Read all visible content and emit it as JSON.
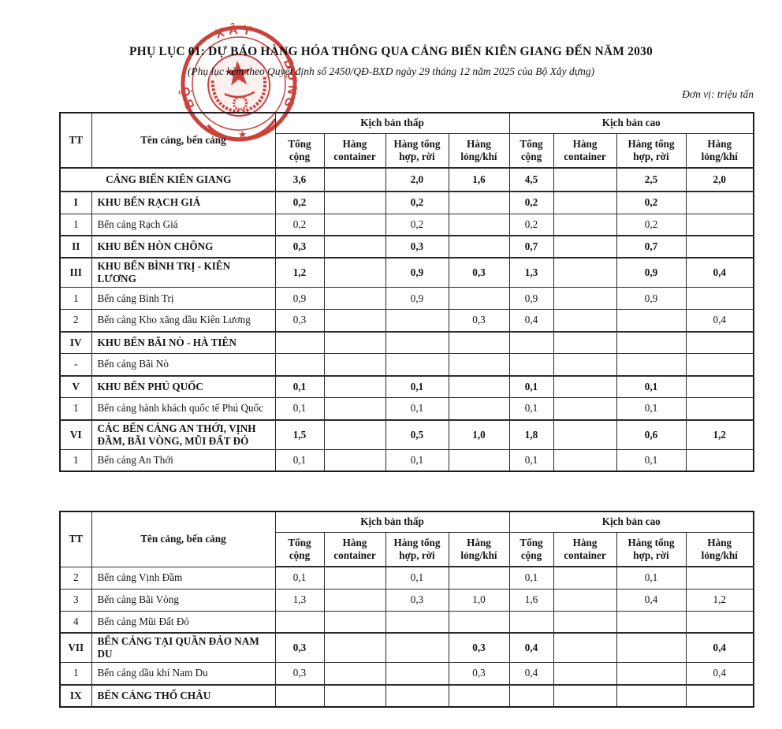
{
  "page": {
    "title": "PHỤ LỤC 01: DỰ BÁO HÀNG HÓA THÔNG QUA CẢNG BIỂN KIÊN GIANG ĐẾN NĂM 2030",
    "subtitle": "(Phụ lục kèm theo Quyết định số 2450/QĐ-BXD ngày 29 tháng 12 năm 2025 của Bộ Xây dựng)",
    "unit_note": "Đơn vị: triệu tấn"
  },
  "stamp": {
    "ring_text_left": "BỘ",
    "ring_text_top": "XÂY",
    "ring_text_right": "DỰNG",
    "color": "#c5322b"
  },
  "header": {
    "tt": "TT",
    "name": "Tên cảng, bến cảng",
    "scenario_low": "Kịch bản thấp",
    "scenario_high": "Kịch bản cao",
    "subcols": [
      "Tổng cộng",
      "Hàng container",
      "Hàng tổng hợp, rời",
      "Hàng lỏng/khí"
    ]
  },
  "table1": {
    "rows": [
      {
        "tt": "",
        "name": "CẢNG BIỂN KIÊN GIANG",
        "style": "total",
        "values": [
          "3,6",
          "",
          "2,0",
          "1,6",
          "4,5",
          "",
          "2,5",
          "2,0"
        ]
      },
      {
        "tt": "I",
        "name": "KHU BẾN RẠCH GIÁ",
        "style": "section",
        "values": [
          "0,2",
          "",
          "0,2",
          "",
          "0,2",
          "",
          "0,2",
          ""
        ]
      },
      {
        "tt": "1",
        "name": "Bến cảng Rạch Giá",
        "style": "item",
        "values": [
          "0,2",
          "",
          "0,2",
          "",
          "0,2",
          "",
          "0,2",
          ""
        ]
      },
      {
        "tt": "II",
        "name": "KHU BẾN HÒN CHÔNG",
        "style": "section",
        "values": [
          "0,3",
          "",
          "0,3",
          "",
          "0,7",
          "",
          "0,7",
          ""
        ]
      },
      {
        "tt": "III",
        "name": "KHU BẾN BÌNH TRỊ - KIÊN LƯƠNG",
        "style": "section",
        "values": [
          "1,2",
          "",
          "0,9",
          "0,3",
          "1,3",
          "",
          "0,9",
          "0,4"
        ]
      },
      {
        "tt": "1",
        "name": "Bến cảng Bình Trị",
        "style": "item",
        "values": [
          "0,9",
          "",
          "0,9",
          "",
          "0,9",
          "",
          "0,9",
          ""
        ]
      },
      {
        "tt": "2",
        "name": "Bến cảng Kho xăng dầu Kiên Lương",
        "style": "item",
        "values": [
          "0,3",
          "",
          "",
          "0,3",
          "0,4",
          "",
          "",
          "0,4"
        ]
      },
      {
        "tt": "IV",
        "name": "KHU BẾN BÃI NÒ - HÀ TIÊN",
        "style": "section",
        "values": [
          "",
          "",
          "",
          "",
          "",
          "",
          "",
          ""
        ]
      },
      {
        "tt": "-",
        "name": "Bến cảng Bãi Nò",
        "style": "item",
        "values": [
          "",
          "",
          "",
          "",
          "",
          "",
          "",
          ""
        ]
      },
      {
        "tt": "V",
        "name": "KHU BẾN PHÚ QUỐC",
        "style": "section",
        "values": [
          "0,1",
          "",
          "0,1",
          "",
          "0,1",
          "",
          "0,1",
          ""
        ]
      },
      {
        "tt": "1",
        "name": "Bến cảng hành khách quốc tế Phú Quốc",
        "style": "item",
        "values": [
          "0,1",
          "",
          "0,1",
          "",
          "0,1",
          "",
          "0,1",
          ""
        ]
      },
      {
        "tt": "VI",
        "name": "CÁC BẾN CẢNG AN THỚI, VỊNH ĐẦM, BÃI VÒNG, MŨI ĐẤT ĐỎ",
        "style": "section",
        "values": [
          "1,5",
          "",
          "0,5",
          "1,0",
          "1,8",
          "",
          "0,6",
          "1,2"
        ]
      },
      {
        "tt": "1",
        "name": "Bến cảng An Thới",
        "style": "item",
        "values": [
          "0,1",
          "",
          "0,1",
          "",
          "0,1",
          "",
          "0,1",
          ""
        ]
      }
    ]
  },
  "table2": {
    "rows": [
      {
        "tt": "2",
        "name": "Bến cảng Vịnh Đầm",
        "style": "item",
        "values": [
          "0,1",
          "",
          "0,1",
          "",
          "0,1",
          "",
          "0,1",
          ""
        ]
      },
      {
        "tt": "3",
        "name": "Bến cảng Bãi Vòng",
        "style": "item",
        "values": [
          "1,3",
          "",
          "0,3",
          "1,0",
          "1,6",
          "",
          "0,4",
          "1,2"
        ]
      },
      {
        "tt": "4",
        "name": "Bến cảng Mũi Đất Đỏ",
        "style": "item",
        "values": [
          "",
          "",
          "",
          "",
          "",
          "",
          "",
          ""
        ]
      },
      {
        "tt": "VII",
        "name": "BẾN CẢNG TẠI QUẦN ĐẢO NAM DU",
        "style": "section",
        "values": [
          "0,3",
          "",
          "",
          "0,3",
          "0,4",
          "",
          "",
          "0,4"
        ]
      },
      {
        "tt": "1",
        "name": "Bến cảng dầu khí Nam Du",
        "style": "item",
        "values": [
          "0,3",
          "",
          "",
          "0,3",
          "0,4",
          "",
          "",
          "0,4"
        ]
      },
      {
        "tt": "IX",
        "name": "BẾN CẢNG THỔ CHÂU",
        "style": "section",
        "values": [
          "",
          "",
          "",
          "",
          "",
          "",
          "",
          ""
        ]
      }
    ]
  }
}
